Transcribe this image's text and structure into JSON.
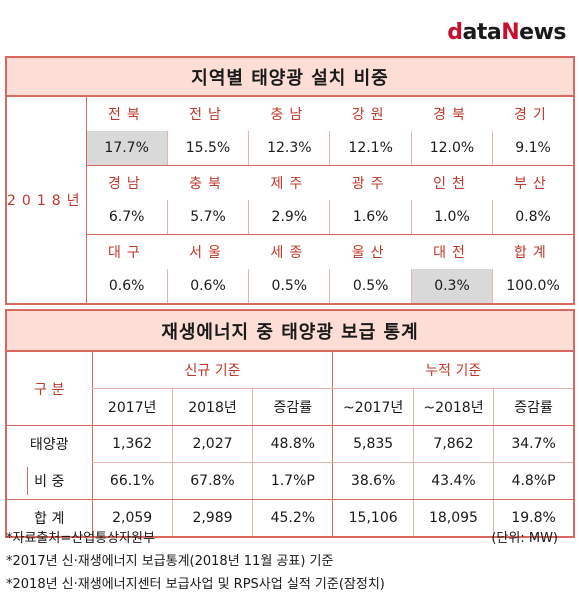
{
  "logo": {
    "d": "d",
    "ata": "ata",
    "n": "N",
    "ews": "ews"
  },
  "table1": {
    "title": "지역별 태양광 설치 비중",
    "year": "2018년",
    "rows": [
      {
        "labels": [
          "전북",
          "전남",
          "충남",
          "강원",
          "경북",
          "경기"
        ],
        "values": [
          "17.7%",
          "15.5%",
          "12.3%",
          "12.1%",
          "12.0%",
          "9.1%"
        ]
      },
      {
        "labels": [
          "경남",
          "충북",
          "제주",
          "광주",
          "인천",
          "부산"
        ],
        "values": [
          "6.7%",
          "5.7%",
          "2.9%",
          "1.6%",
          "1.0%",
          "0.8%"
        ]
      },
      {
        "labels": [
          "대구",
          "서울",
          "세종",
          "울산",
          "대전",
          "합계"
        ],
        "values": [
          "0.6%",
          "0.6%",
          "0.5%",
          "0.5%",
          "0.3%",
          "100.0%"
        ]
      }
    ]
  },
  "table2": {
    "title": "재생에너지 중 태양광 보급 통계",
    "col_gubun": "구 분",
    "group_new": "신규 기준",
    "group_cum": "누적 기준",
    "headers": [
      "2017년",
      "2018년",
      "증감률",
      "~2017년",
      "~2018년",
      "증감률"
    ],
    "rows": [
      {
        "label": "태양광",
        "values": [
          "1,362",
          "2,027",
          "48.8%",
          "5,835",
          "7,862",
          "34.7%"
        ]
      },
      {
        "label": "비 중",
        "values": [
          "66.1%",
          "67.8%",
          "1.7%P",
          "38.6%",
          "43.4%",
          "4.8%P"
        ]
      },
      {
        "label": "합 계",
        "values": [
          "2,059",
          "2,989",
          "45.2%",
          "15,106",
          "18,095",
          "19.8%"
        ]
      }
    ]
  },
  "unit": "(단위: MW)",
  "footnotes": [
    "*자료출처=산업통상자원부",
    "*2017년 신·재생에너지 보급통계(2018년 11월 공표) 기준",
    "*2018년 신·재생에너지센터 보급사업 및 RPS사업 실적 기준(잠정치)"
  ]
}
